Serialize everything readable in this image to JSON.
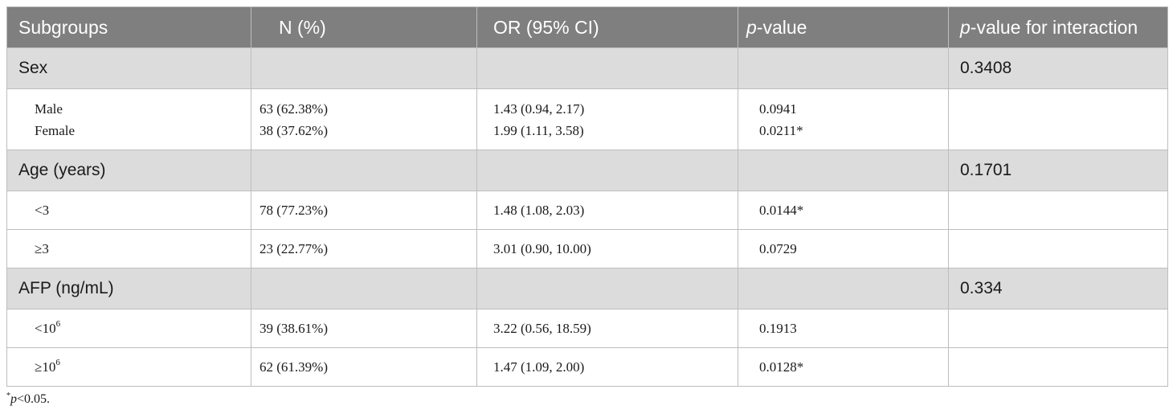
{
  "headers": {
    "subgroups": "Subgroups",
    "n_pct": "N (%)",
    "or_ci": "OR (95% CI)",
    "p_italic": "p",
    "p_rest": "-value",
    "pint_italic": "p",
    "pint_rest": "-value for interaction"
  },
  "groups": [
    {
      "label": "Sex",
      "p_interaction": "0.3408",
      "rows": [
        {
          "subgroup": "Male",
          "n": "63 (62.38%)",
          "or": "1.43 (0.94, 2.17)",
          "p": "0.0941"
        },
        {
          "subgroup": "Female",
          "n": "38 (37.62%)",
          "or": "1.99 (1.11, 3.58)",
          "p": "0.0211*"
        }
      ]
    },
    {
      "label": "Age (years)",
      "p_interaction": "0.1701",
      "rows": [
        {
          "subgroup": "<3",
          "n": "78 (77.23%)",
          "or": "1.48 (1.08, 2.03)",
          "p": "0.0144*"
        },
        {
          "subgroup": "≥3",
          "n": "23 (22.77%)",
          "or": "3.01 (0.90, 10.00)",
          "p": "0.0729"
        }
      ]
    },
    {
      "label": "AFP (ng/mL)",
      "p_interaction": "0.334",
      "rows": [
        {
          "subgroup_base": "<10",
          "subgroup_exp": "6",
          "n": "39 (38.61%)",
          "or": "3.22 (0.56, 18.59)",
          "p": "0.1913"
        },
        {
          "subgroup_base": "≥10",
          "subgroup_exp": "6",
          "n": "62 (61.39%)",
          "or": "1.47 (1.09, 2.00)",
          "p": "0.0128*"
        }
      ]
    }
  ],
  "footnote": {
    "star": "*",
    "p_italic": "p",
    "rest": "<0.05."
  }
}
